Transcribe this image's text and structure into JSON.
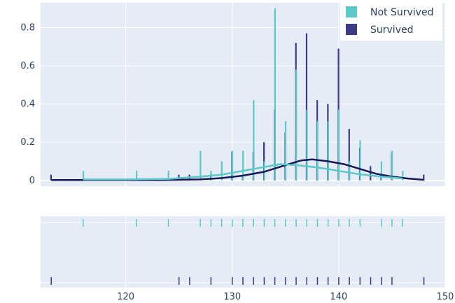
{
  "chart_data": {
    "type": "histogram+kde+rug",
    "x_ticks": [
      120,
      130,
      140,
      150
    ],
    "y_ticks": [
      0,
      0.2,
      0.4,
      0.6,
      0.8
    ],
    "y_tick_labels": [
      "0",
      "0.2",
      "0.4",
      "0.6",
      "0.8"
    ],
    "xlim": [
      112,
      150
    ],
    "ylim": [
      -0.03,
      0.93
    ],
    "grid": true,
    "legend_position": "top-right",
    "colors": {
      "not_survived": "#5dc8c8",
      "survived": "#3b3b86",
      "kde_survived": "#14185a",
      "plot_bg": "#e5ecf6"
    },
    "series": [
      {
        "name": "Not Survived",
        "bars": [
          {
            "x": 116,
            "y": 0.05
          },
          {
            "x": 121,
            "y": 0.05
          },
          {
            "x": 124,
            "y": 0.05
          },
          {
            "x": 127,
            "y": 0.155
          },
          {
            "x": 128,
            "y": 0.05
          },
          {
            "x": 129,
            "y": 0.1
          },
          {
            "x": 130,
            "y": 0.155
          },
          {
            "x": 131,
            "y": 0.155
          },
          {
            "x": 132,
            "y": 0.42
          },
          {
            "x": 133,
            "y": 0.1
          },
          {
            "x": 134,
            "y": 0.9
          },
          {
            "x": 135,
            "y": 0.31
          },
          {
            "x": 136,
            "y": 0.58
          },
          {
            "x": 137,
            "y": 0.37
          },
          {
            "x": 138,
            "y": 0.31
          },
          {
            "x": 139,
            "y": 0.31
          },
          {
            "x": 140,
            "y": 0.37
          },
          {
            "x": 141,
            "y": 0.1
          },
          {
            "x": 142,
            "y": 0.21
          },
          {
            "x": 144,
            "y": 0.1
          },
          {
            "x": 145,
            "y": 0.155
          },
          {
            "x": 146,
            "y": 0.05
          }
        ],
        "kde": [
          [
            116,
            0.005
          ],
          [
            120,
            0.005
          ],
          [
            124,
            0.008
          ],
          [
            127,
            0.02
          ],
          [
            129,
            0.03
          ],
          [
            131,
            0.05
          ],
          [
            133,
            0.07
          ],
          [
            134.5,
            0.085
          ],
          [
            136,
            0.08
          ],
          [
            138,
            0.068
          ],
          [
            140,
            0.05
          ],
          [
            142,
            0.032
          ],
          [
            144,
            0.02
          ],
          [
            146,
            0.01
          ]
        ],
        "rug": [
          116,
          121,
          124,
          127,
          128,
          129,
          130,
          131,
          132,
          133,
          134,
          135,
          136,
          137,
          138,
          139,
          140,
          141,
          142,
          144,
          145,
          146
        ]
      },
      {
        "name": "Survived",
        "bars": [
          {
            "x": 113,
            "y": 0.03
          },
          {
            "x": 125,
            "y": 0.03
          },
          {
            "x": 126,
            "y": 0.03
          },
          {
            "x": 128,
            "y": 0.03
          },
          {
            "x": 130,
            "y": 0.15
          },
          {
            "x": 131,
            "y": 0.03
          },
          {
            "x": 132,
            "y": 0.15
          },
          {
            "x": 133,
            "y": 0.2
          },
          {
            "x": 134,
            "y": 0.37
          },
          {
            "x": 135,
            "y": 0.25
          },
          {
            "x": 136,
            "y": 0.72
          },
          {
            "x": 137,
            "y": 0.77
          },
          {
            "x": 138,
            "y": 0.42
          },
          {
            "x": 139,
            "y": 0.4
          },
          {
            "x": 140,
            "y": 0.69
          },
          {
            "x": 141,
            "y": 0.27
          },
          {
            "x": 142,
            "y": 0.17
          },
          {
            "x": 143,
            "y": 0.075
          },
          {
            "x": 144,
            "y": 0.03
          },
          {
            "x": 145,
            "y": 0.145
          },
          {
            "x": 148,
            "y": 0.03
          }
        ],
        "kde": [
          [
            113,
            0.002
          ],
          [
            118,
            0.002
          ],
          [
            123,
            0.002
          ],
          [
            127,
            0.005
          ],
          [
            129,
            0.012
          ],
          [
            131,
            0.025
          ],
          [
            133,
            0.045
          ],
          [
            135,
            0.08
          ],
          [
            136.5,
            0.105
          ],
          [
            137.5,
            0.11
          ],
          [
            139,
            0.1
          ],
          [
            140.5,
            0.085
          ],
          [
            142,
            0.06
          ],
          [
            143.5,
            0.035
          ],
          [
            145,
            0.02
          ],
          [
            146.5,
            0.01
          ],
          [
            148,
            0.003
          ]
        ],
        "rug": [
          113,
          125,
          126,
          128,
          130,
          131,
          132,
          133,
          134,
          135,
          136,
          137,
          138,
          139,
          140,
          141,
          142,
          143,
          144,
          145,
          148
        ]
      }
    ]
  }
}
